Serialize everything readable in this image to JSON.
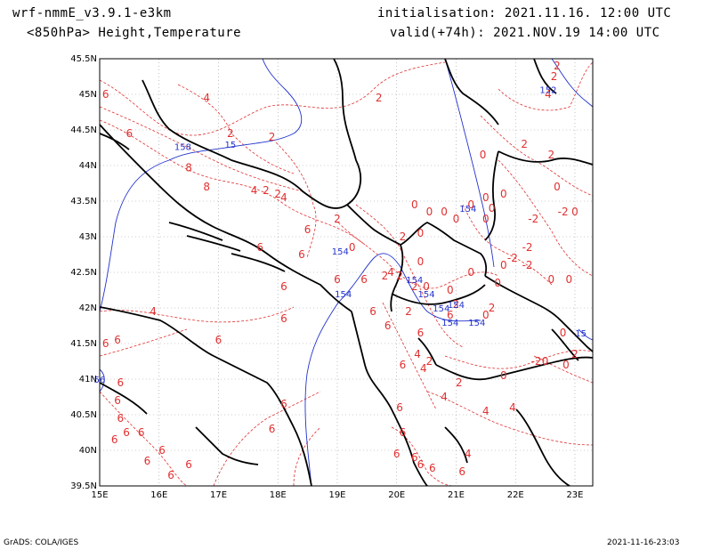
{
  "header": {
    "model": "wrf-nmmE_v3.9.1-e3km",
    "field": "<850hPa> Height,Temperature",
    "init": "initialisation: 2021.11.16. 12:00 UTC",
    "valid": "valid(+74h): 2021.NOV.19 14:00 UTC"
  },
  "footer": {
    "credit": "GrADS: COLA/IGES",
    "timestamp": "2021-11-16-23:03"
  },
  "map": {
    "lon_ticks": [
      "15E",
      "16E",
      "17E",
      "18E",
      "19E",
      "20E",
      "21E",
      "22E",
      "23E"
    ],
    "lat_ticks": [
      "45.5N",
      "45N",
      "44.5N",
      "44N",
      "43.5N",
      "43N",
      "42.5N",
      "42N",
      "41.5N",
      "41N",
      "40.5N",
      "40N",
      "39.5N"
    ],
    "colors": {
      "temperature": "#e03030",
      "height": "#2233cc",
      "coast": "#000000",
      "grid": "#999999"
    },
    "temp_labels": [
      {
        "t": "6",
        "lon": 15.1,
        "lat": 44.95
      },
      {
        "t": "4",
        "lon": 16.8,
        "lat": 44.9
      },
      {
        "t": "2",
        "lon": 19.7,
        "lat": 44.9
      },
      {
        "t": "6",
        "lon": 15.5,
        "lat": 44.4
      },
      {
        "t": "2",
        "lon": 17.2,
        "lat": 44.4
      },
      {
        "t": "2",
        "lon": 17.9,
        "lat": 44.35
      },
      {
        "t": "8",
        "lon": 16.5,
        "lat": 43.92
      },
      {
        "t": "8",
        "lon": 16.8,
        "lat": 43.65
      },
      {
        "t": "4",
        "lon": 17.6,
        "lat": 43.6
      },
      {
        "t": "2",
        "lon": 17.8,
        "lat": 43.6
      },
      {
        "t": "4",
        "lon": 18.1,
        "lat": 43.5
      },
      {
        "t": "2",
        "lon": 18.0,
        "lat": 43.55
      },
      {
        "t": "2",
        "lon": 19.0,
        "lat": 43.2
      },
      {
        "t": "6",
        "lon": 18.5,
        "lat": 43.05
      },
      {
        "t": "0",
        "lon": 19.25,
        "lat": 42.8
      },
      {
        "t": "2",
        "lon": 20.1,
        "lat": 42.95
      },
      {
        "t": "0",
        "lon": 20.4,
        "lat": 43.0
      },
      {
        "t": "0",
        "lon": 20.4,
        "lat": 42.6
      },
      {
        "t": "0",
        "lon": 20.55,
        "lat": 43.3
      },
      {
        "t": "0",
        "lon": 20.8,
        "lat": 43.3
      },
      {
        "t": "0",
        "lon": 21.0,
        "lat": 43.2
      },
      {
        "t": "0",
        "lon": 21.5,
        "lat": 43.2
      },
      {
        "t": "-2",
        "lon": 22.3,
        "lat": 43.2
      },
      {
        "t": "0",
        "lon": 21.8,
        "lat": 43.55
      },
      {
        "t": "0",
        "lon": 21.25,
        "lat": 43.4
      },
      {
        "t": "0",
        "lon": 21.6,
        "lat": 43.35
      },
      {
        "t": "0",
        "lon": 21.5,
        "lat": 43.5
      },
      {
        "t": "0",
        "lon": 20.3,
        "lat": 43.4
      },
      {
        "t": "0",
        "lon": 22.7,
        "lat": 43.65
      },
      {
        "t": "-2",
        "lon": 22.8,
        "lat": 43.3
      },
      {
        "t": "0",
        "lon": 23.0,
        "lat": 43.3
      },
      {
        "t": "0",
        "lon": 21.45,
        "lat": 44.1
      },
      {
        "t": "2",
        "lon": 22.15,
        "lat": 44.25
      },
      {
        "t": "2",
        "lon": 22.6,
        "lat": 44.1
      },
      {
        "t": "4",
        "lon": 22.55,
        "lat": 44.95
      },
      {
        "t": "2",
        "lon": 22.65,
        "lat": 45.2
      },
      {
        "t": "2",
        "lon": 22.7,
        "lat": 45.35
      },
      {
        "t": "6",
        "lon": 17.7,
        "lat": 42.8
      },
      {
        "t": "6",
        "lon": 18.4,
        "lat": 42.7
      },
      {
        "t": "6",
        "lon": 18.1,
        "lat": 42.25
      },
      {
        "t": "6",
        "lon": 19.0,
        "lat": 42.35
      },
      {
        "t": "6",
        "lon": 19.45,
        "lat": 42.35
      },
      {
        "t": "2",
        "lon": 19.8,
        "lat": 42.4
      },
      {
        "t": "4",
        "lon": 19.9,
        "lat": 42.45
      },
      {
        "t": "2",
        "lon": 20.05,
        "lat": 42.4
      },
      {
        "t": "2",
        "lon": 20.3,
        "lat": 42.25
      },
      {
        "t": "0",
        "lon": 20.5,
        "lat": 42.25
      },
      {
        "t": "0",
        "lon": 20.9,
        "lat": 42.2
      },
      {
        "t": "2",
        "lon": 21.0,
        "lat": 42.0
      },
      {
        "t": "0",
        "lon": 21.8,
        "lat": 42.55
      },
      {
        "t": "-2",
        "lon": 21.95,
        "lat": 42.65
      },
      {
        "t": "-2",
        "lon": 22.2,
        "lat": 42.8
      },
      {
        "t": "-2",
        "lon": 22.2,
        "lat": 42.55
      },
      {
        "t": "0",
        "lon": 22.6,
        "lat": 42.35
      },
      {
        "t": "0",
        "lon": 22.9,
        "lat": 42.35
      },
      {
        "t": "0",
        "lon": 21.25,
        "lat": 42.45
      },
      {
        "t": "0",
        "lon": 21.5,
        "lat": 41.85
      },
      {
        "t": "0",
        "lon": 21.7,
        "lat": 42.3
      },
      {
        "t": "2",
        "lon": 21.6,
        "lat": 41.95
      },
      {
        "t": "6",
        "lon": 19.6,
        "lat": 41.9
      },
      {
        "t": "6",
        "lon": 19.85,
        "lat": 41.7
      },
      {
        "t": "2",
        "lon": 20.2,
        "lat": 41.9
      },
      {
        "t": "6",
        "lon": 20.9,
        "lat": 41.85
      },
      {
        "t": "6",
        "lon": 20.4,
        "lat": 41.6
      },
      {
        "t": "4",
        "lon": 20.35,
        "lat": 41.3
      },
      {
        "t": "6",
        "lon": 20.1,
        "lat": 41.15
      },
      {
        "t": "4",
        "lon": 20.45,
        "lat": 41.1
      },
      {
        "t": "2",
        "lon": 20.55,
        "lat": 41.2
      },
      {
        "t": "4",
        "lon": 20.8,
        "lat": 40.7
      },
      {
        "t": "2",
        "lon": 21.05,
        "lat": 40.9
      },
      {
        "t": "0",
        "lon": 21.8,
        "lat": 41.0
      },
      {
        "t": "-2",
        "lon": 22.35,
        "lat": 41.2
      },
      {
        "t": "0",
        "lon": 22.5,
        "lat": 41.2
      },
      {
        "t": "0",
        "lon": 22.8,
        "lat": 41.6
      },
      {
        "t": "0",
        "lon": 22.85,
        "lat": 41.15
      },
      {
        "t": "2",
        "lon": 23.0,
        "lat": 41.3
      },
      {
        "t": "4",
        "lon": 15.9,
        "lat": 41.9
      },
      {
        "t": "6",
        "lon": 15.1,
        "lat": 41.45
      },
      {
        "t": "6",
        "lon": 15.3,
        "lat": 41.5
      },
      {
        "t": "6",
        "lon": 17.0,
        "lat": 41.5
      },
      {
        "t": "6",
        "lon": 18.1,
        "lat": 41.8
      },
      {
        "t": "6",
        "lon": 15.35,
        "lat": 40.9
      },
      {
        "t": "6",
        "lon": 15.3,
        "lat": 40.65
      },
      {
        "t": "6",
        "lon": 15.35,
        "lat": 40.4
      },
      {
        "t": "6",
        "lon": 15.45,
        "lat": 40.2
      },
      {
        "t": "6",
        "lon": 15.25,
        "lat": 40.1
      },
      {
        "t": "6",
        "lon": 15.7,
        "lat": 40.2
      },
      {
        "t": "6",
        "lon": 16.05,
        "lat": 39.95
      },
      {
        "t": "6",
        "lon": 16.5,
        "lat": 39.75
      },
      {
        "t": "6",
        "lon": 16.2,
        "lat": 39.6
      },
      {
        "t": "6",
        "lon": 15.8,
        "lat": 39.8
      },
      {
        "t": "6",
        "lon": 17.9,
        "lat": 40.25
      },
      {
        "t": "6",
        "lon": 18.1,
        "lat": 40.6
      },
      {
        "t": "6",
        "lon": 20.05,
        "lat": 40.55
      },
      {
        "t": "6",
        "lon": 20.1,
        "lat": 40.2
      },
      {
        "t": "6",
        "lon": 20.0,
        "lat": 39.9
      },
      {
        "t": "6",
        "lon": 20.3,
        "lat": 39.85
      },
      {
        "t": "6",
        "lon": 20.4,
        "lat": 39.75
      },
      {
        "t": "6",
        "lon": 20.6,
        "lat": 39.7
      },
      {
        "t": "6",
        "lon": 21.1,
        "lat": 39.65
      },
      {
        "t": "4",
        "lon": 21.2,
        "lat": 39.9
      },
      {
        "t": "4",
        "lon": 21.5,
        "lat": 40.5
      },
      {
        "t": "4",
        "lon": 21.95,
        "lat": 40.55
      }
    ],
    "height_labels": [
      {
        "t": "158",
        "lon": 16.4,
        "lat": 44.22
      },
      {
        "t": "15",
        "lon": 17.2,
        "lat": 44.25
      },
      {
        "t": "152",
        "lon": 22.55,
        "lat": 45.02
      },
      {
        "t": "154",
        "lon": 19.05,
        "lat": 42.75
      },
      {
        "t": "154",
        "lon": 19.1,
        "lat": 42.15
      },
      {
        "t": "154",
        "lon": 20.5,
        "lat": 42.15
      },
      {
        "t": "154",
        "lon": 20.75,
        "lat": 41.95
      },
      {
        "t": "154",
        "lon": 21.0,
        "lat": 42.0
      },
      {
        "t": "154",
        "lon": 20.9,
        "lat": 41.75
      },
      {
        "t": "154",
        "lon": 21.35,
        "lat": 41.75
      },
      {
        "t": "154",
        "lon": 21.2,
        "lat": 43.35
      },
      {
        "t": "15",
        "lon": 23.1,
        "lat": 41.6
      },
      {
        "t": "56",
        "lon": 15.0,
        "lat": 40.95
      },
      {
        "t": "154",
        "lon": 20.3,
        "lat": 42.35
      }
    ]
  }
}
